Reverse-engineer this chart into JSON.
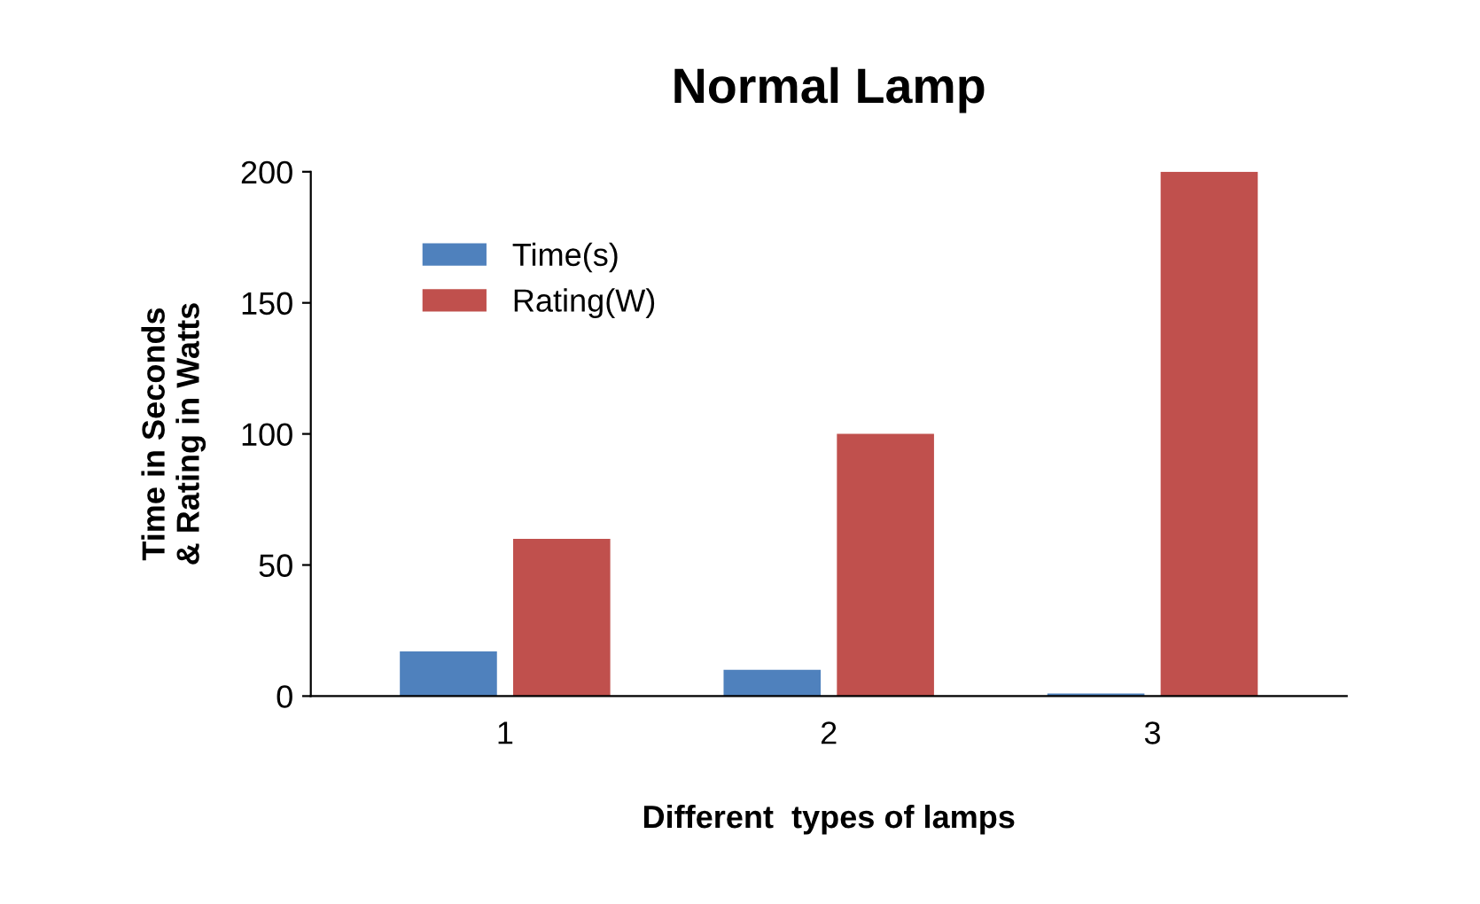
{
  "chart_data": {
    "type": "bar",
    "title": "Normal Lamp",
    "xlabel": "Different  types of lamps",
    "ylabel": "Time in Seconds\n& Rating in Watts",
    "categories": [
      "1",
      "2",
      "3"
    ],
    "series": [
      {
        "name": "Time(s)",
        "color": "#4f81bd",
        "values": [
          17,
          10,
          1
        ]
      },
      {
        "name": "Rating(W)",
        "color": "#c0504d",
        "values": [
          60,
          100,
          200
        ]
      }
    ],
    "ylim": [
      0,
      200
    ],
    "yticks": [
      0,
      50,
      100,
      150,
      200
    ],
    "grid": false,
    "legend": "top left"
  }
}
